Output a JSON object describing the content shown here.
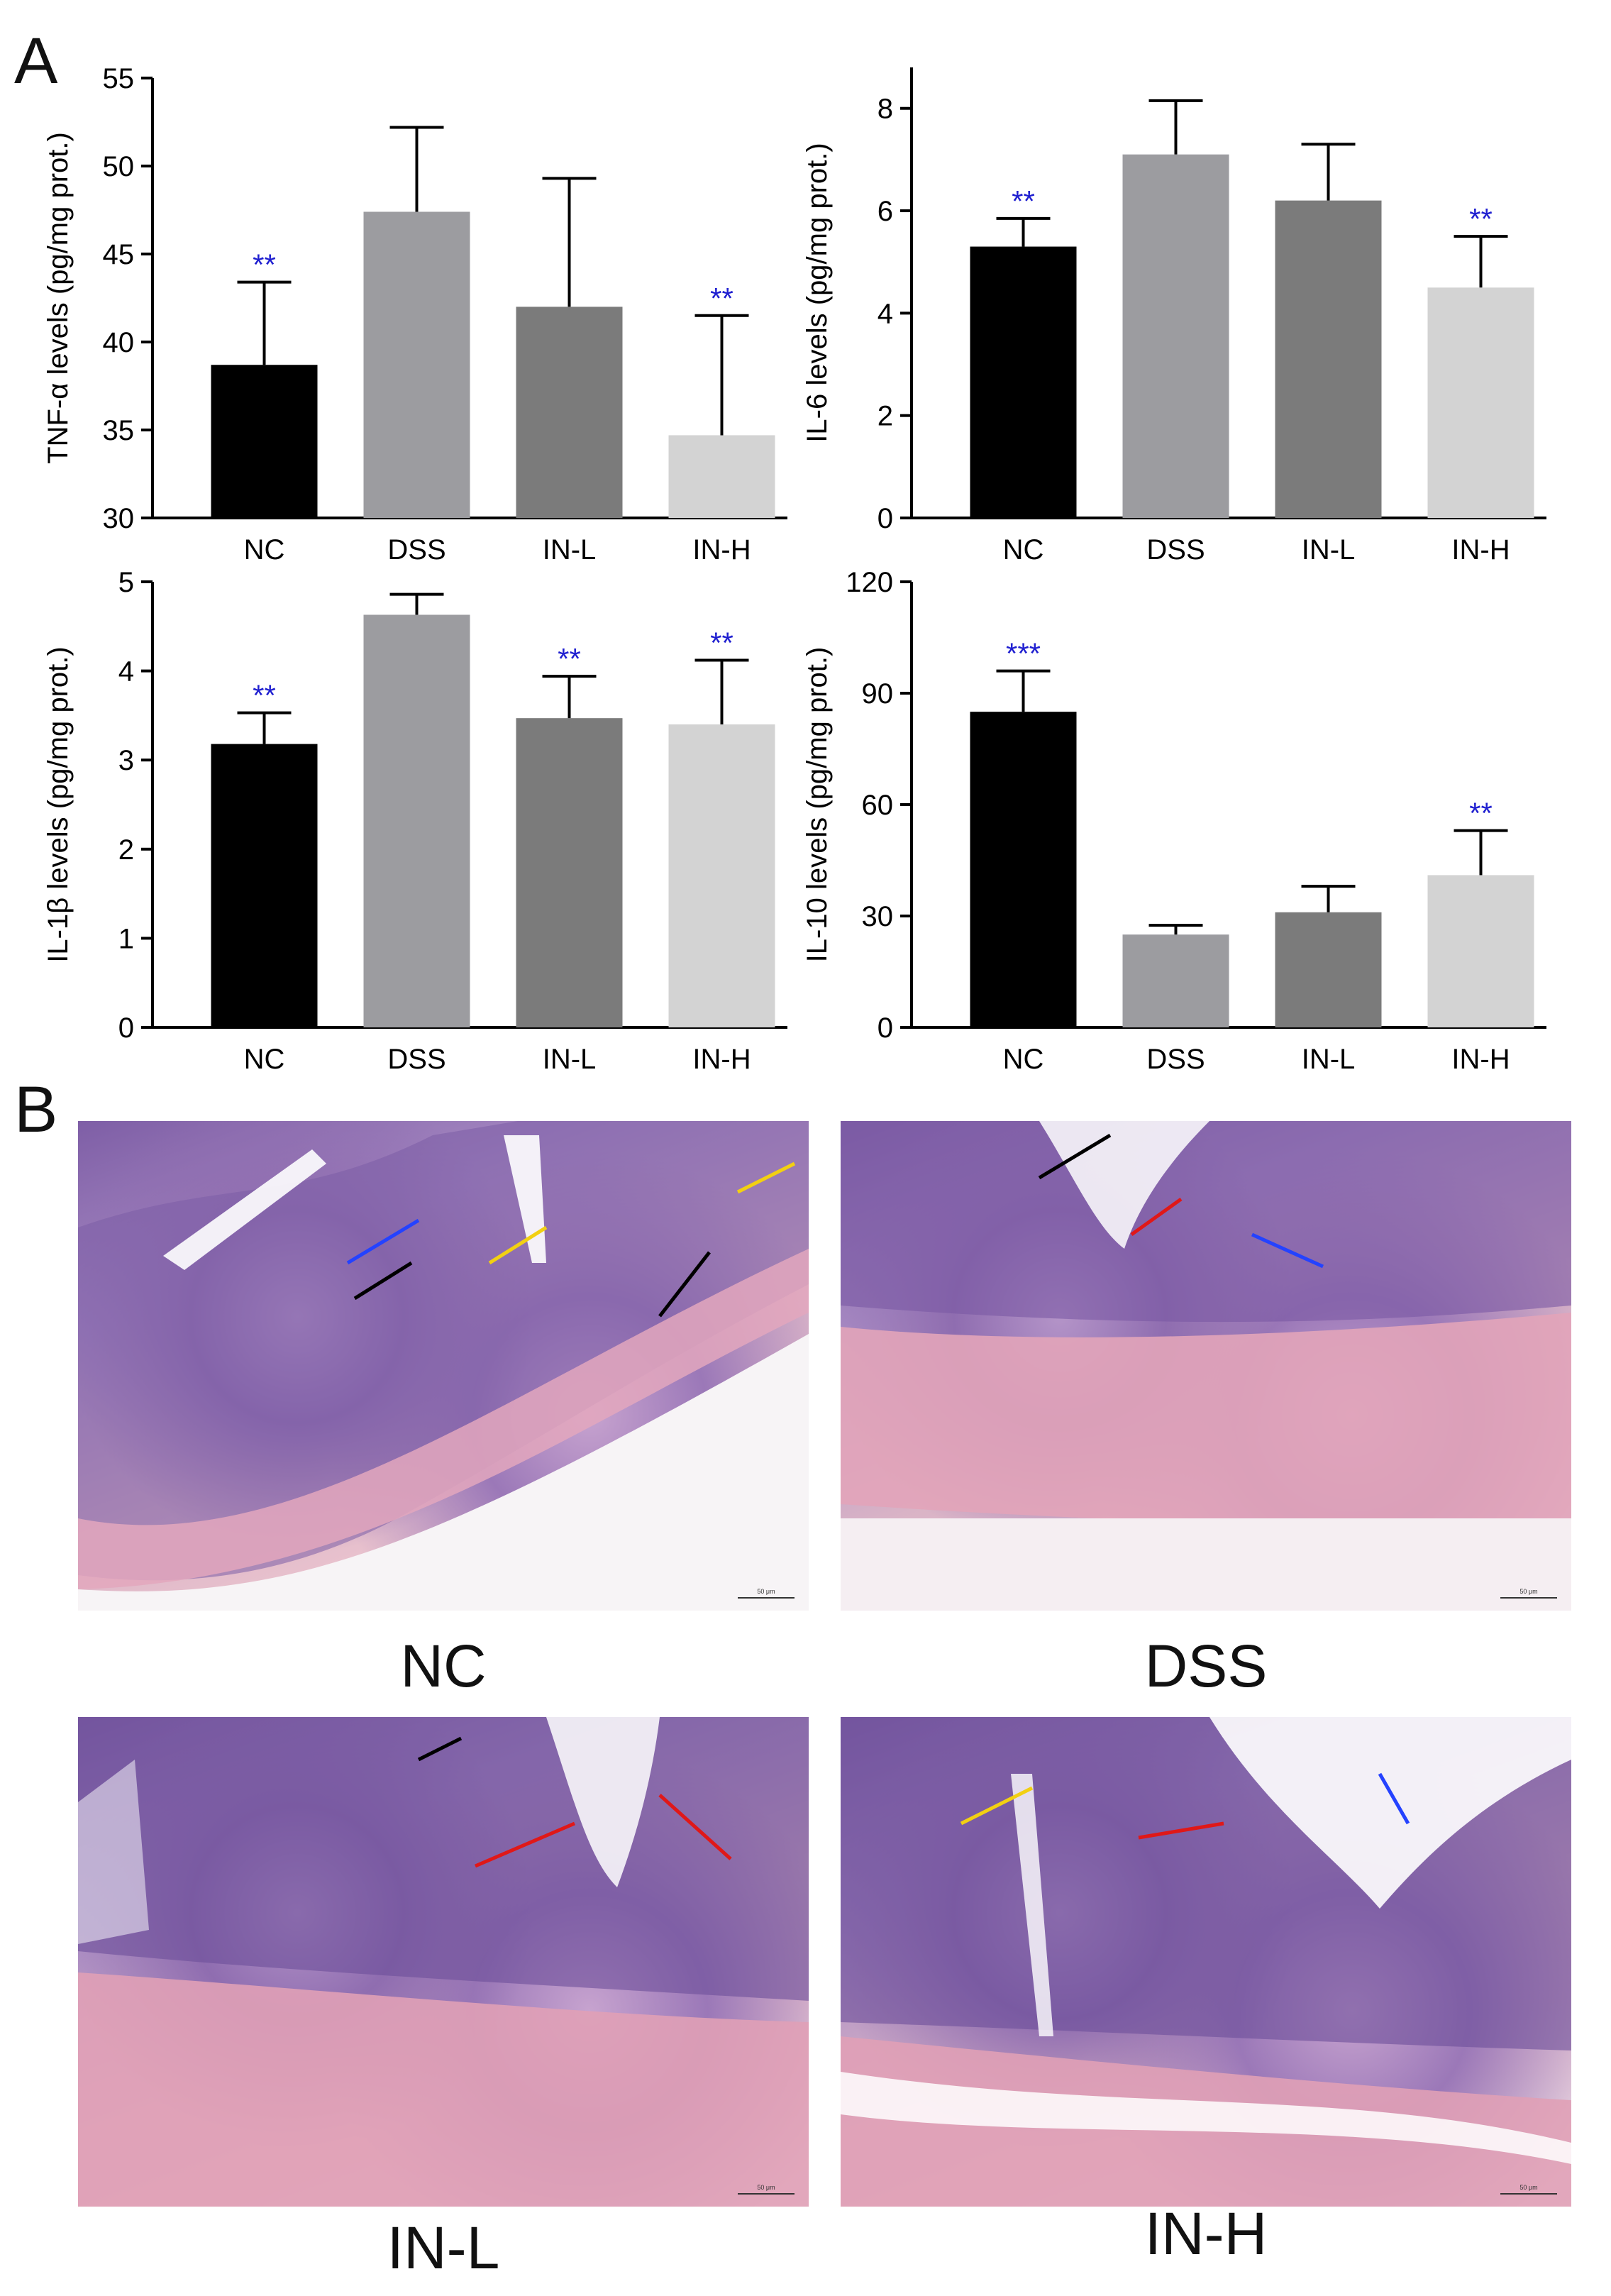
{
  "panels": {
    "a": "A",
    "b": "B"
  },
  "chart_data": [
    {
      "type": "bar",
      "id": "tnf",
      "categories": [
        "NC",
        "DSS",
        "IN-L",
        "IN-H"
      ],
      "values": [
        38.7,
        47.4,
        42.0,
        34.7
      ],
      "errors": [
        4.7,
        4.8,
        7.3,
        6.8
      ],
      "significance": [
        "**",
        "",
        "",
        "**"
      ],
      "ylabel": "TNF-α levels (pg/mg prot.)",
      "ylim": [
        30,
        55
      ],
      "yticks": [
        "30",
        "35",
        "40",
        "45",
        "50",
        "55"
      ]
    },
    {
      "type": "bar",
      "id": "il6",
      "categories": [
        "NC",
        "DSS",
        "IN-L",
        "IN-H"
      ],
      "values": [
        5.3,
        7.1,
        6.2,
        4.5
      ],
      "errors": [
        0.55,
        1.05,
        1.1,
        1.0
      ],
      "significance": [
        "**",
        "",
        "",
        "**"
      ],
      "ylabel": "IL-6 levels (pg/mg prot.)",
      "ylim": [
        0,
        8.8
      ],
      "yticks": [
        "0",
        "2",
        "4",
        "6",
        "8"
      ]
    },
    {
      "type": "bar",
      "id": "il1b",
      "categories": [
        "NC",
        "DSS",
        "IN-L",
        "IN-H"
      ],
      "values": [
        3.18,
        4.63,
        3.47,
        3.4
      ],
      "errors": [
        0.35,
        0.23,
        0.47,
        0.72
      ],
      "significance": [
        "**",
        "",
        "**",
        "**"
      ],
      "ylabel": "IL-1β levels (pg/mg prot.)",
      "ylim": [
        0,
        5
      ],
      "yticks": [
        "0",
        "1",
        "2",
        "3",
        "4",
        "5"
      ]
    },
    {
      "type": "bar",
      "id": "il10",
      "categories": [
        "NC",
        "DSS",
        "IN-L",
        "IN-H"
      ],
      "values": [
        85,
        25,
        31,
        41
      ],
      "errors": [
        11,
        2.5,
        7,
        12
      ],
      "significance": [
        "***",
        "",
        "",
        "**"
      ],
      "ylabel": "IL-10 levels (pg/mg prot.)",
      "ylim": [
        0,
        120
      ],
      "yticks": [
        "0",
        "30",
        "60",
        "90",
        "120"
      ]
    }
  ],
  "colors": {
    "NC": "#000000",
    "DSS": "#9c9ca0",
    "IN-L": "#7b7b7b",
    "IN-H": "#d3d3d3",
    "significance": "#1f1fd0"
  },
  "histology": [
    {
      "label": "NC",
      "scale": "50 μm"
    },
    {
      "label": "DSS",
      "scale": "50 μm"
    },
    {
      "label": "IN-L",
      "scale": "50 μm"
    },
    {
      "label": "IN-H",
      "scale": "50 μm"
    }
  ]
}
